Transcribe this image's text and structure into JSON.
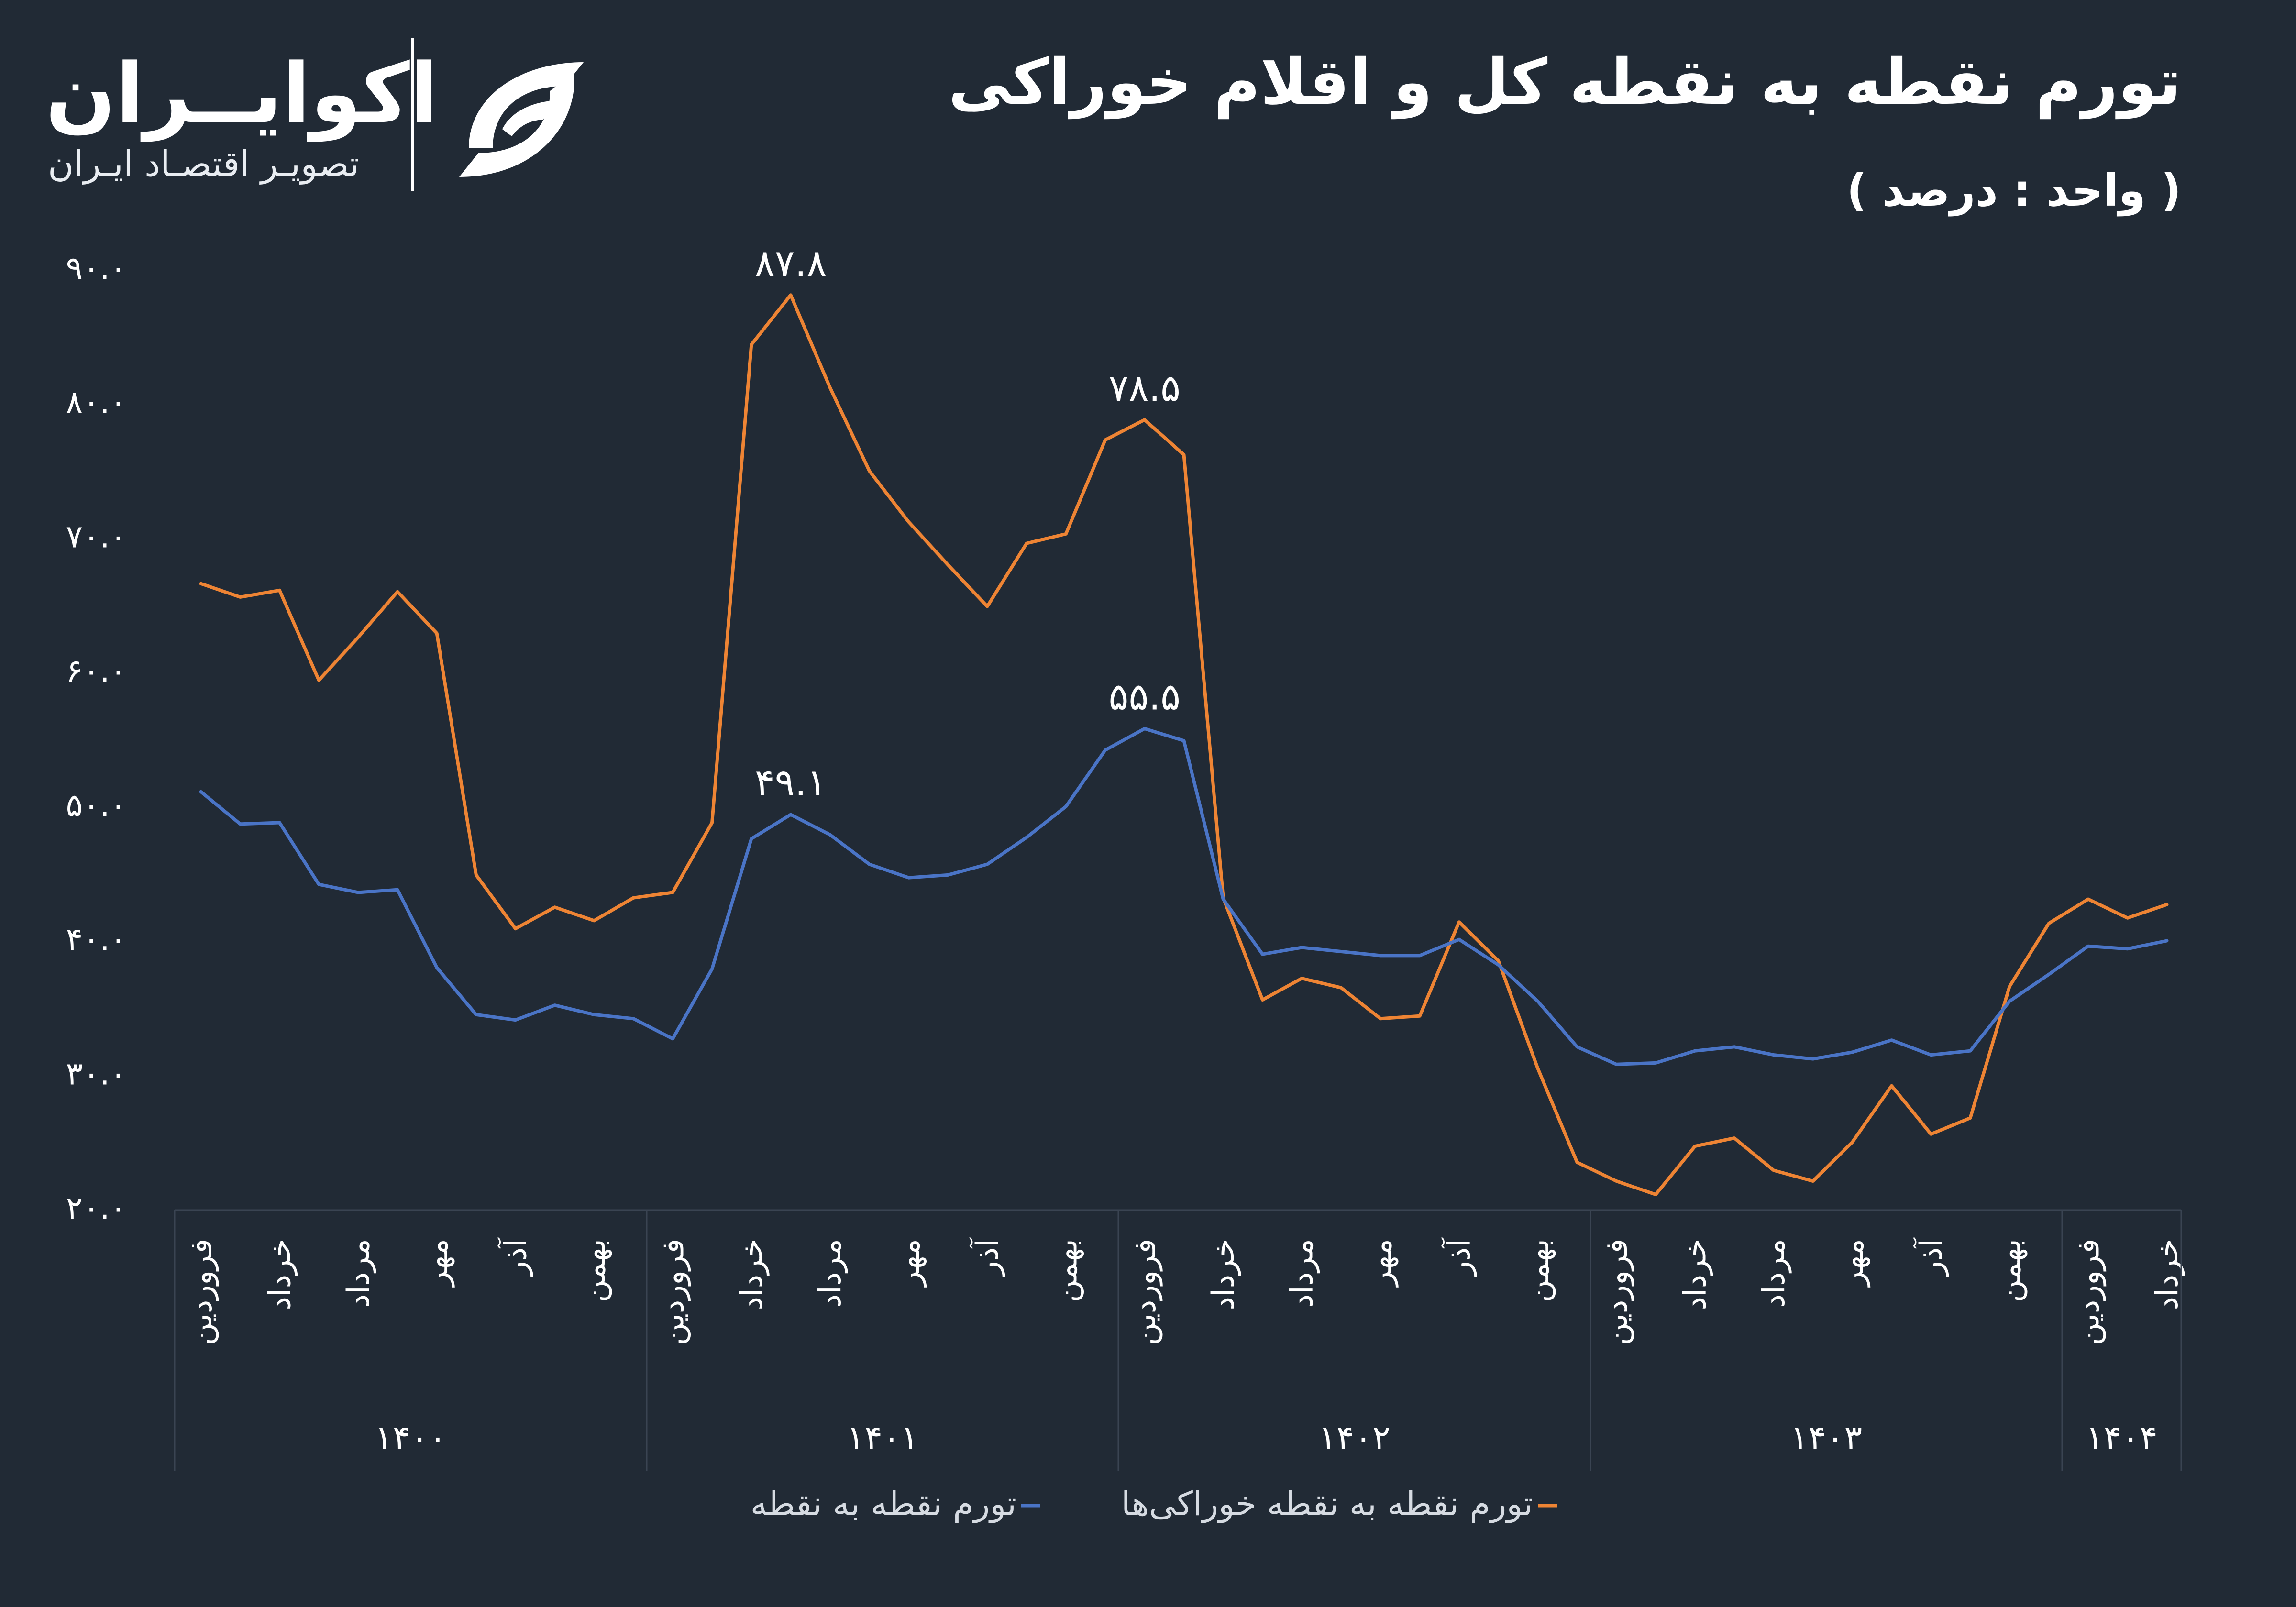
{
  "header": {
    "title": "تورم نقطه به نقطه کل و اقلام خوراکی",
    "subtitle": "( واحد : درصد )"
  },
  "brand": {
    "name": "اکوایــران",
    "tagline": "تصویـر اقتصـاد ایـران",
    "logo_icon": "ecoiran-swoosh-icon"
  },
  "colors": {
    "background": "#212a35",
    "food": "#ee8434",
    "total": "#4a74c6",
    "text": "#ffffff",
    "grid": "#3a4452"
  },
  "chart_data": {
    "type": "line",
    "ylim": [
      20,
      90
    ],
    "yticks": [
      "۲۰.۰",
      "۳۰.۰",
      "۴۰.۰",
      "۵۰.۰",
      "۶۰.۰",
      "۷۰.۰",
      "۸۰.۰",
      "۹۰.۰"
    ],
    "x_month_labels": [
      "فروردین",
      "خرداد",
      "مرداد",
      "مهر",
      "آذر",
      "بهمن",
      "فروردین",
      "خرداد",
      "مرداد",
      "مهر",
      "آذر",
      "بهمن",
      "فروردین",
      "خرداد",
      "مرداد",
      "مهر",
      "آذر",
      "بهمن",
      "فروردین",
      "خرداد",
      "مرداد",
      "مهر",
      "آذر",
      "بهمن",
      "فروردین",
      "خرداد"
    ],
    "year_groups": [
      {
        "label": "۱۴۰۰",
        "months": 12
      },
      {
        "label": "۱۴۰۱",
        "months": 12
      },
      {
        "label": "۱۴۰۲",
        "months": 12
      },
      {
        "label": "۱۴۰۳",
        "months": 12
      },
      {
        "label": "۱۴۰۴",
        "months": 3
      }
    ],
    "series": [
      {
        "name": "تورم نقطه به نقطه خوراکی‌ها",
        "color": "#ee8434",
        "values": [
          66.3,
          65.3,
          65.8,
          59.1,
          62.3,
          65.7,
          62.6,
          44.6,
          40.6,
          42.2,
          41.2,
          42.9,
          43.3,
          48.5,
          84.1,
          87.8,
          80.9,
          74.7,
          70.9,
          67.7,
          64.6,
          69.3,
          70.0,
          77.0,
          78.5,
          75.9,
          42.9,
          35.3,
          36.9,
          36.2,
          33.9,
          34.1,
          41.1,
          38.2,
          30.2,
          23.2,
          21.8,
          20.8,
          24.4,
          25.0,
          22.6,
          21.8,
          24.7,
          28.9,
          25.3,
          26.5,
          36.3,
          41.0,
          42.8,
          41.4,
          42.4
        ]
      },
      {
        "name": "تورم نقطه به نقطه",
        "color": "#4a74c6",
        "values": [
          50.8,
          48.4,
          48.5,
          43.9,
          43.3,
          43.5,
          37.7,
          34.2,
          33.8,
          34.9,
          34.2,
          33.9,
          32.4,
          37.6,
          47.3,
          49.1,
          47.6,
          45.4,
          44.4,
          44.6,
          45.4,
          47.4,
          49.7,
          53.9,
          55.5,
          54.6,
          42.8,
          38.7,
          39.2,
          38.9,
          38.6,
          38.6,
          39.8,
          37.9,
          35.2,
          31.8,
          30.5,
          30.6,
          31.5,
          31.8,
          31.2,
          30.9,
          31.4,
          32.3,
          31.2,
          31.5,
          35.2,
          37.2,
          39.3,
          39.1,
          39.7
        ]
      }
    ],
    "annotations": [
      {
        "text": "۸۷.۸",
        "series": 0,
        "index": 15
      },
      {
        "text": "۷۸.۵",
        "series": 0,
        "index": 24
      },
      {
        "text": "۴۹.۱",
        "series": 1,
        "index": 15
      },
      {
        "text": "۵۵.۵",
        "series": 1,
        "index": 24
      }
    ],
    "grid": false,
    "legend_position": "bottom-center"
  }
}
